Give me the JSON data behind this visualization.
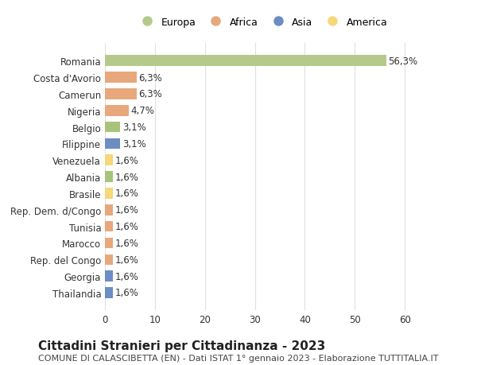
{
  "categories": [
    "Thailandia",
    "Georgia",
    "Rep. del Congo",
    "Marocco",
    "Tunisia",
    "Rep. Dem. d/Congo",
    "Brasile",
    "Albania",
    "Venezuela",
    "Filippine",
    "Belgio",
    "Nigeria",
    "Camerun",
    "Costa d'Avorio",
    "Romania"
  ],
  "values": [
    1.6,
    1.6,
    1.6,
    1.6,
    1.6,
    1.6,
    1.6,
    1.6,
    1.6,
    3.1,
    3.1,
    4.7,
    6.3,
    6.3,
    56.3
  ],
  "labels": [
    "1,6%",
    "1,6%",
    "1,6%",
    "1,6%",
    "1,6%",
    "1,6%",
    "1,6%",
    "1,6%",
    "1,6%",
    "3,1%",
    "3,1%",
    "4,7%",
    "6,3%",
    "6,3%",
    "56,3%"
  ],
  "colors": [
    "#6b8dc4",
    "#6b8dc4",
    "#e8a87c",
    "#e8a87c",
    "#e8a87c",
    "#e8a87c",
    "#f5d87a",
    "#a8c47a",
    "#f5d87a",
    "#6b8dc4",
    "#a8c47a",
    "#e8a87c",
    "#e8a87c",
    "#e8a87c",
    "#b5c98a"
  ],
  "legend_labels": [
    "Europa",
    "Africa",
    "Asia",
    "America"
  ],
  "legend_colors": [
    "#b5c98a",
    "#e8a87c",
    "#6b8dc4",
    "#f5d87a"
  ],
  "title": "Cittadini Stranieri per Cittadinanza - 2023",
  "subtitle": "COMUNE DI CALASCIBETTA (EN) - Dati ISTAT 1° gennaio 2023 - Elaborazione TUTTITALIA.IT",
  "xlim": [
    0,
    63
  ],
  "xticks": [
    0,
    10,
    20,
    30,
    40,
    50,
    60
  ],
  "background_color": "#ffffff",
  "grid_color": "#e0e0e0",
  "bar_height": 0.65,
  "label_fontsize": 8.5,
  "title_fontsize": 11,
  "subtitle_fontsize": 8,
  "tick_fontsize": 8.5
}
